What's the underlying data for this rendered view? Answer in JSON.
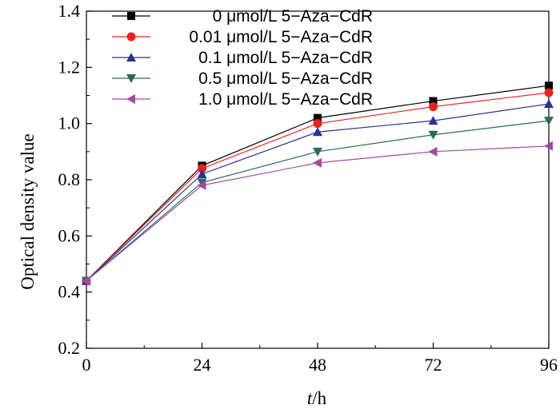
{
  "chart_data": {
    "type": "line",
    "x": [
      0,
      24,
      48,
      72,
      96
    ],
    "xticks": [
      0,
      24,
      48,
      72,
      96
    ],
    "yticks": [
      0.2,
      0.4,
      0.6,
      0.8,
      1.0,
      1.2,
      1.4
    ],
    "ytick_labels": [
      "0.2",
      "0.4",
      "0.6",
      "0.8",
      "1.0",
      "1.2",
      "1.4"
    ],
    "xlim": [
      0,
      96
    ],
    "ylim": [
      0.2,
      1.4
    ],
    "xlabel_italic": "t",
    "xlabel_rest": "/h",
    "ylabel": "Optical density value",
    "grid": false,
    "legend_position": "top-left",
    "series": [
      {
        "name": "0 μmol/L 5−Aza−CdR",
        "color": "#000000",
        "marker": "square",
        "values": [
          0.44,
          0.85,
          1.02,
          1.08,
          1.135
        ]
      },
      {
        "name": "0.01 μmol/L 5−Aza−CdR",
        "color": "#e8231e",
        "marker": "circle",
        "values": [
          0.44,
          0.84,
          1.0,
          1.06,
          1.11
        ]
      },
      {
        "name": "0.1 μmol/L 5−Aza−CdR",
        "color": "#2e3192",
        "marker": "triangle-up",
        "values": [
          0.44,
          0.82,
          0.97,
          1.01,
          1.07
        ]
      },
      {
        "name": "0.5 μmol/L 5−Aza−CdR",
        "color": "#2a6b5c",
        "marker": "triangle-down",
        "values": [
          0.44,
          0.79,
          0.9,
          0.96,
          1.01
        ]
      },
      {
        "name": "1.0 μmol/L 5−Aza−CdR",
        "color": "#a24aa0",
        "marker": "triangle-left",
        "values": [
          0.44,
          0.78,
          0.86,
          0.9,
          0.92
        ]
      }
    ]
  }
}
